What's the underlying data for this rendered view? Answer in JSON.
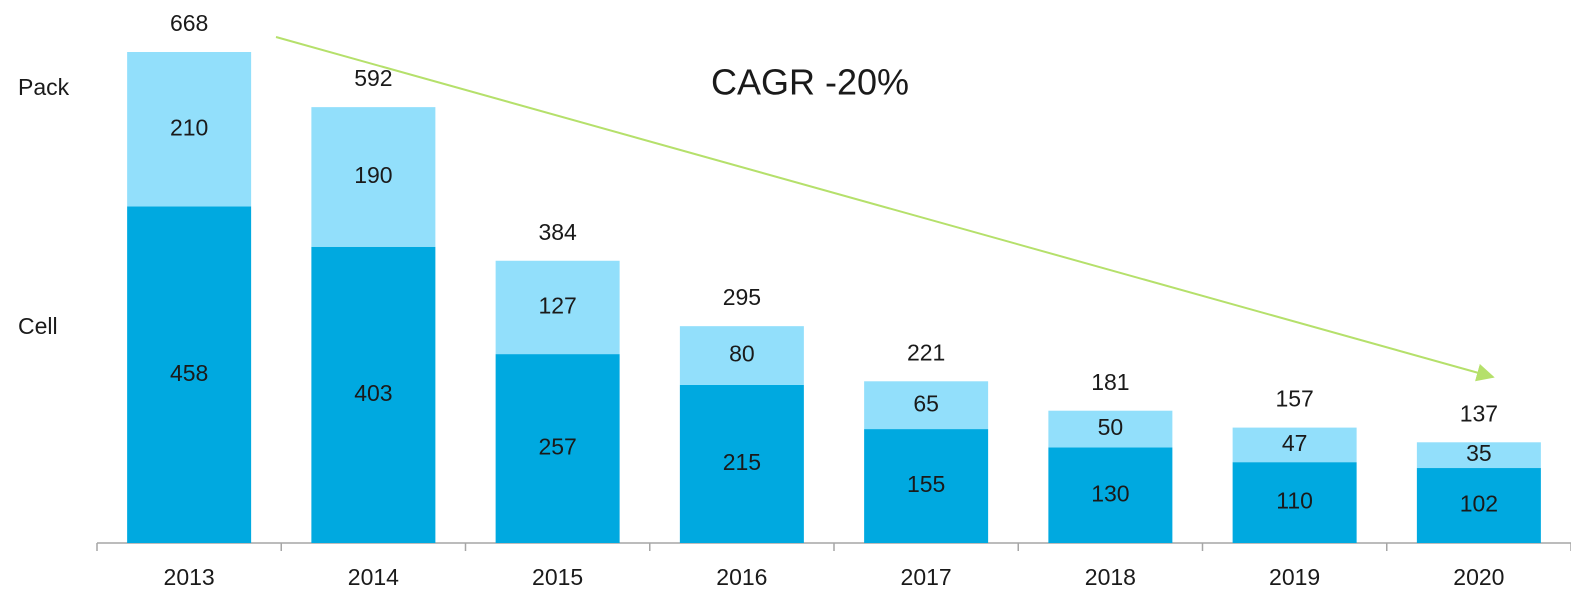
{
  "chart_data": {
    "type": "stacked-bar",
    "annotation": "CAGR -20%",
    "categories": [
      "2013",
      "2014",
      "2015",
      "2016",
      "2017",
      "2018",
      "2019",
      "2020"
    ],
    "series": [
      {
        "name": "Cell",
        "color": "#00a9e0",
        "values": [
          458,
          403,
          257,
          215,
          155,
          130,
          110,
          102
        ]
      },
      {
        "name": "Pack",
        "color": "#92dffb",
        "values": [
          210,
          190,
          127,
          80,
          65,
          50,
          47,
          35
        ]
      }
    ],
    "totals": [
      668,
      592,
      384,
      295,
      221,
      181,
      157,
      137
    ],
    "arrow_color": "#b5e06b"
  }
}
